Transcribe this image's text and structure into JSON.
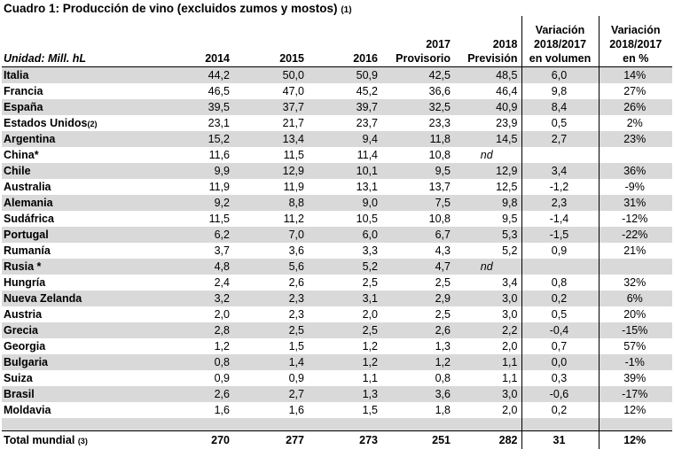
{
  "title": "Cuadro 1: Producción de vino (excluidos zumos y mostos)",
  "title_note": "(1)",
  "headers": {
    "unit": "Unidad: Mill. hL",
    "y2014": "2014",
    "y2015": "2015",
    "y2016": "2016",
    "y2017_line1": "2017",
    "y2017_line2": "Provisorio",
    "y2018_line1": "2018",
    "y2018_line2": "Previsión",
    "var_vol_line1": "Variación",
    "var_vol_line2": "2018/2017",
    "var_vol_line3": "en volumen",
    "var_pct_line1": "Variación",
    "var_pct_line2": "2018/2017",
    "var_pct_line3": "en %"
  },
  "rows": [
    {
      "country": "Italia",
      "note": "",
      "v2014": "44,2",
      "v2015": "50,0",
      "v2016": "50,9",
      "v2017": "42,5",
      "v2018": "48,5",
      "var_vol": "6,0",
      "var_pct": "14%"
    },
    {
      "country": "Francia",
      "note": "",
      "v2014": "46,5",
      "v2015": "47,0",
      "v2016": "45,2",
      "v2017": "36,6",
      "v2018": "46,4",
      "var_vol": "9,8",
      "var_pct": "27%"
    },
    {
      "country": "España",
      "note": "",
      "v2014": "39,5",
      "v2015": "37,7",
      "v2016": "39,7",
      "v2017": "32,5",
      "v2018": "40,9",
      "var_vol": "8,4",
      "var_pct": "26%"
    },
    {
      "country": "Estados Unidos",
      "note": "(2)",
      "v2014": "23,1",
      "v2015": "21,7",
      "v2016": "23,7",
      "v2017": "23,3",
      "v2018": "23,9",
      "var_vol": "0,5",
      "var_pct": "2%"
    },
    {
      "country": "Argentina",
      "note": "",
      "v2014": "15,2",
      "v2015": "13,4",
      "v2016": "9,4",
      "v2017": "11,8",
      "v2018": "14,5",
      "var_vol": "2,7",
      "var_pct": "23%"
    },
    {
      "country": "China*",
      "note": "",
      "v2014": "11,6",
      "v2015": "11,5",
      "v2016": "11,4",
      "v2017": "10,8",
      "v2018": "nd",
      "var_vol": "",
      "var_pct": ""
    },
    {
      "country": "Chile",
      "note": "",
      "v2014": "9,9",
      "v2015": "12,9",
      "v2016": "10,1",
      "v2017": "9,5",
      "v2018": "12,9",
      "var_vol": "3,4",
      "var_pct": "36%"
    },
    {
      "country": "Australia",
      "note": "",
      "v2014": "11,9",
      "v2015": "11,9",
      "v2016": "13,1",
      "v2017": "13,7",
      "v2018": "12,5",
      "var_vol": "-1,2",
      "var_pct": "-9%"
    },
    {
      "country": "Alemania",
      "note": "",
      "v2014": "9,2",
      "v2015": "8,8",
      "v2016": "9,0",
      "v2017": "7,5",
      "v2018": "9,8",
      "var_vol": "2,3",
      "var_pct": "31%"
    },
    {
      "country": "Sudáfrica",
      "note": "",
      "v2014": "11,5",
      "v2015": "11,2",
      "v2016": "10,5",
      "v2017": "10,8",
      "v2018": "9,5",
      "var_vol": "-1,4",
      "var_pct": "-12%"
    },
    {
      "country": "Portugal",
      "note": "",
      "v2014": "6,2",
      "v2015": "7,0",
      "v2016": "6,0",
      "v2017": "6,7",
      "v2018": "5,3",
      "var_vol": "-1,5",
      "var_pct": "-22%"
    },
    {
      "country": "Rumanía",
      "note": "",
      "v2014": "3,7",
      "v2015": "3,6",
      "v2016": "3,3",
      "v2017": "4,3",
      "v2018": "5,2",
      "var_vol": "0,9",
      "var_pct": "21%"
    },
    {
      "country": "Rusia *",
      "note": "",
      "v2014": "4,8",
      "v2015": "5,6",
      "v2016": "5,2",
      "v2017": "4,7",
      "v2018": "nd",
      "var_vol": "",
      "var_pct": ""
    },
    {
      "country": "Hungría",
      "note": "",
      "v2014": "2,4",
      "v2015": "2,6",
      "v2016": "2,5",
      "v2017": "2,5",
      "v2018": "3,4",
      "var_vol": "0,8",
      "var_pct": "32%"
    },
    {
      "country": "Nueva Zelanda",
      "note": "",
      "v2014": "3,2",
      "v2015": "2,3",
      "v2016": "3,1",
      "v2017": "2,9",
      "v2018": "3,0",
      "var_vol": "0,2",
      "var_pct": "6%"
    },
    {
      "country": "Austria",
      "note": "",
      "v2014": "2,0",
      "v2015": "2,3",
      "v2016": "2,0",
      "v2017": "2,5",
      "v2018": "3,0",
      "var_vol": "0,5",
      "var_pct": "20%"
    },
    {
      "country": "Grecia",
      "note": "",
      "v2014": "2,8",
      "v2015": "2,5",
      "v2016": "2,5",
      "v2017": "2,6",
      "v2018": "2,2",
      "var_vol": "-0,4",
      "var_pct": "-15%"
    },
    {
      "country": "Georgia",
      "note": "",
      "v2014": "1,2",
      "v2015": "1,5",
      "v2016": "1,2",
      "v2017": "1,3",
      "v2018": "2,0",
      "var_vol": "0,7",
      "var_pct": "57%"
    },
    {
      "country": "Bulgaria",
      "note": "",
      "v2014": "0,8",
      "v2015": "1,4",
      "v2016": "1,2",
      "v2017": "1,2",
      "v2018": "1,1",
      "var_vol": "0,0",
      "var_pct": "-1%"
    },
    {
      "country": "Suiza",
      "note": "",
      "v2014": "0,9",
      "v2015": "0,9",
      "v2016": "1,1",
      "v2017": "0,8",
      "v2018": "1,1",
      "var_vol": "0,3",
      "var_pct": "39%"
    },
    {
      "country": "Brasil",
      "note": "",
      "v2014": "2,6",
      "v2015": "2,7",
      "v2016": "1,3",
      "v2017": "3,6",
      "v2018": "3,0",
      "var_vol": "-0,6",
      "var_pct": "-17%"
    },
    {
      "country": "Moldavia",
      "note": "",
      "v2014": "1,6",
      "v2015": "1,6",
      "v2016": "1,5",
      "v2017": "1,8",
      "v2018": "2,0",
      "var_vol": "0,2",
      "var_pct": "12%"
    }
  ],
  "total": {
    "label": "Total mundial",
    "note": "(3)",
    "v2014": "270",
    "v2015": "277",
    "v2016": "273",
    "v2017": "251",
    "v2018": "282",
    "var_vol": "31",
    "var_pct": "12%"
  },
  "colors": {
    "shade": "#d9d9d9"
  }
}
